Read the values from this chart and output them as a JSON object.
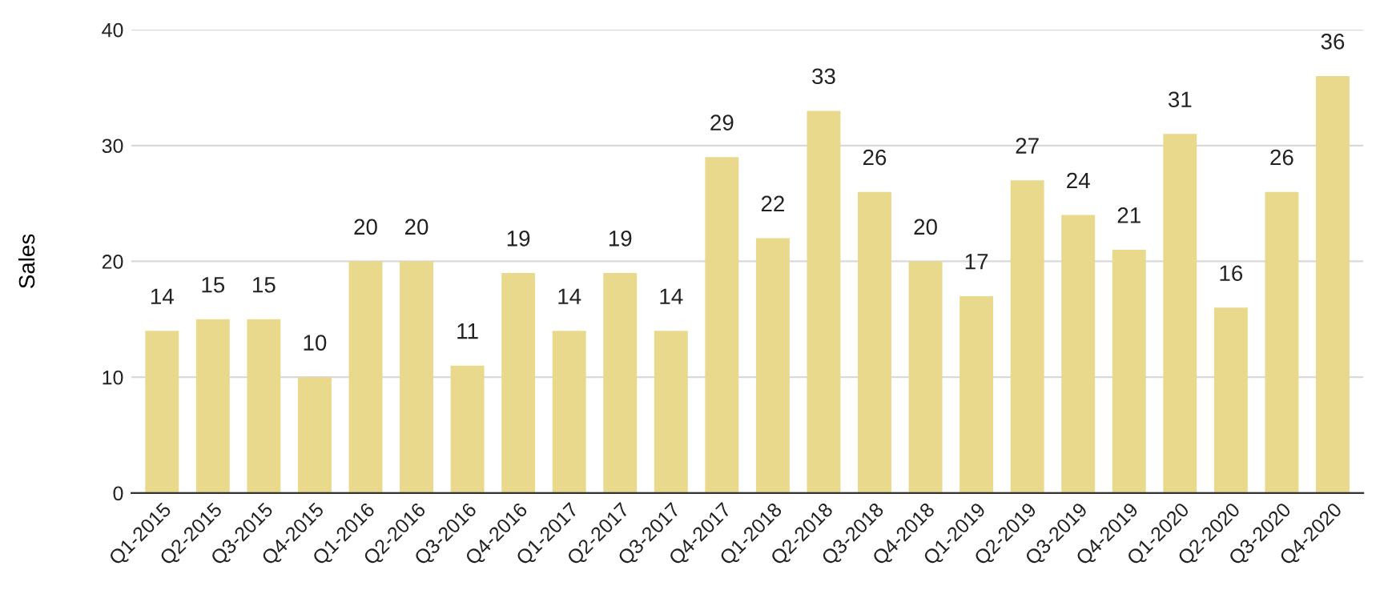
{
  "chart_data": {
    "type": "bar",
    "ylabel": "Sales",
    "categories": [
      "Q1-2015",
      "Q2-2015",
      "Q3-2015",
      "Q4-2015",
      "Q1-2016",
      "Q2-2016",
      "Q3-2016",
      "Q4-2016",
      "Q1-2017",
      "Q2-2017",
      "Q3-2017",
      "Q4-2017",
      "Q1-2018",
      "Q2-2018",
      "Q3-2018",
      "Q4-2018",
      "Q1-2019",
      "Q2-2019",
      "Q3-2019",
      "Q4-2019",
      "Q1-2020",
      "Q2-2020",
      "Q3-2020",
      "Q4-2020"
    ],
    "values": [
      14,
      15,
      15,
      10,
      20,
      20,
      11,
      19,
      14,
      19,
      14,
      29,
      22,
      33,
      26,
      20,
      17,
      27,
      24,
      21,
      31,
      16,
      26,
      36
    ],
    "color": "#e8d98c",
    "ylim": [
      0,
      40
    ],
    "yticks": [
      0,
      10,
      20,
      30,
      40
    ],
    "grid": "y",
    "data_labels": true
  }
}
